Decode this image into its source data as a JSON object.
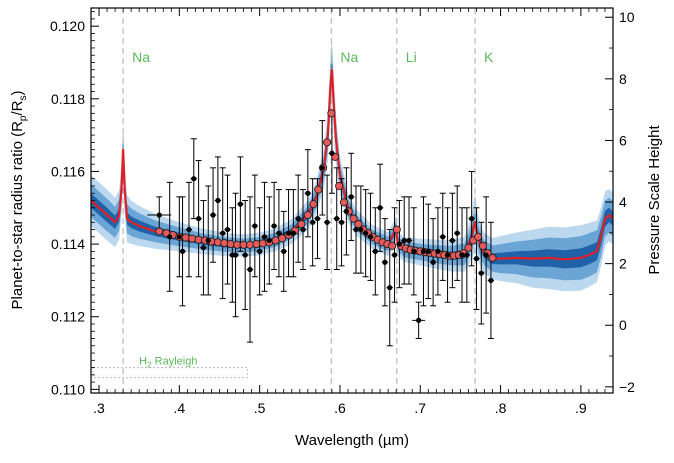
{
  "chart_data": {
    "type": "line",
    "xlabel": "Wavelength (µm)",
    "ylabel_main": "Planet-to-star radius ratio (R",
    "ylabel_sub_p": "p",
    "ylabel_slash": "/R",
    "ylabel_sub_s": "s",
    "ylabel_close": ")",
    "y2label": "Pressure Scale Height",
    "xlim": [
      0.29,
      0.94
    ],
    "ylim": [
      0.1099,
      0.1205
    ],
    "y2lim": [
      -2.2,
      10.3
    ],
    "xticks": [
      0.3,
      0.4,
      0.5,
      0.6,
      0.7,
      0.8,
      0.9
    ],
    "xtick_labels": [
      ".3",
      ".4",
      ".5",
      ".6",
      ".7",
      ".8",
      ".9"
    ],
    "yticks": [
      0.11,
      0.112,
      0.114,
      0.116,
      0.118,
      0.12
    ],
    "ytick_labels": [
      "0.110",
      "0.112",
      "0.114",
      "0.116",
      "0.118",
      "0.120"
    ],
    "y2ticks": [
      -2,
      0,
      2,
      4,
      6,
      8,
      10
    ],
    "y2tick_labels": [
      "−2",
      "0",
      "2",
      "4",
      "6",
      "8",
      "10"
    ],
    "colors": {
      "band_outer": "#bcd8ee",
      "band_mid": "#6aa5d6",
      "band_inner": "#1f62a7",
      "model": "#e01f26",
      "binned_fill": "#e85a5a",
      "data": "#000000",
      "annotation": "#5cb85c",
      "guide": "#bbbbbb"
    },
    "annotations": [
      {
        "label": "Na",
        "x": 0.33
      },
      {
        "label": "Na",
        "x": 0.5893
      },
      {
        "label": "Li",
        "x": 0.6708
      },
      {
        "label": "K",
        "x": 0.7682
      }
    ],
    "rayleigh_label_main": "H",
    "rayleigh_label_sub": "2",
    "rayleigh_label_rest": " Rayleigh",
    "rayleigh_range": [
      0.29,
      0.485
    ],
    "rayleigh_level": 0.1106,
    "model": {
      "x": [
        0.29,
        0.3,
        0.31,
        0.32,
        0.325,
        0.328,
        0.33,
        0.332,
        0.335,
        0.34,
        0.35,
        0.37,
        0.4,
        0.43,
        0.46,
        0.48,
        0.5,
        0.52,
        0.54,
        0.56,
        0.57,
        0.58,
        0.585,
        0.588,
        0.59,
        0.592,
        0.595,
        0.6,
        0.61,
        0.62,
        0.64,
        0.66,
        0.67,
        0.672,
        0.68,
        0.7,
        0.72,
        0.74,
        0.755,
        0.76,
        0.765,
        0.768,
        0.771,
        0.775,
        0.78,
        0.79,
        0.8,
        0.82,
        0.84,
        0.86,
        0.88,
        0.9,
        0.91,
        0.92,
        0.925,
        0.93,
        0.935,
        0.94
      ],
      "y": [
        0.1152,
        0.115,
        0.1148,
        0.1146,
        0.1148,
        0.1155,
        0.1166,
        0.1155,
        0.1147,
        0.1146,
        0.1145,
        0.11435,
        0.1142,
        0.11407,
        0.11398,
        0.11396,
        0.114,
        0.11412,
        0.11435,
        0.1148,
        0.11525,
        0.1161,
        0.117,
        0.1183,
        0.1188,
        0.118,
        0.1169,
        0.1159,
        0.115,
        0.1146,
        0.1142,
        0.114,
        0.1144,
        0.114,
        0.11385,
        0.11378,
        0.11372,
        0.11368,
        0.11372,
        0.11395,
        0.1143,
        0.1146,
        0.1143,
        0.11395,
        0.11375,
        0.1136,
        0.1136,
        0.11362,
        0.1136,
        0.11362,
        0.11358,
        0.11362,
        0.1137,
        0.1138,
        0.1142,
        0.1147,
        0.1148,
        0.1147
      ],
      "s1": [
        0.0002,
        0.0002,
        0.0002,
        0.00018,
        0.00018,
        0.0002,
        0.00022,
        0.0002,
        0.00017,
        0.00016,
        0.00015,
        0.00013,
        0.00011,
        9e-05,
        8e-05,
        8e-05,
        8e-05,
        8e-05,
        8e-05,
        0.0001,
        0.00012,
        0.00015,
        0.0002,
        0.00025,
        0.00028,
        0.00025,
        0.0002,
        0.00014,
        0.0001,
        9e-05,
        8e-05,
        8e-05,
        9e-05,
        8e-05,
        8e-05,
        9e-05,
        0.0001,
        0.00011,
        0.00012,
        0.00013,
        0.00014,
        0.00015,
        0.00014,
        0.00014,
        0.00014,
        0.00015,
        0.00016,
        0.00018,
        0.00022,
        0.00024,
        0.00025,
        0.00026,
        0.00026,
        0.00025,
        0.00024,
        0.00022,
        0.0002,
        0.0002
      ],
      "s2": [
        0.00045,
        0.00045,
        0.00045,
        0.00043,
        0.00043,
        0.00045,
        0.00048,
        0.00044,
        0.0004,
        0.00038,
        0.00035,
        0.0003,
        0.00026,
        0.00022,
        0.0002,
        0.00019,
        0.00019,
        0.00019,
        0.0002,
        0.00024,
        0.00028,
        0.00034,
        0.00042,
        0.0005,
        0.00055,
        0.0005,
        0.00042,
        0.00032,
        0.00025,
        0.00022,
        0.0002,
        0.0002,
        0.00022,
        0.0002,
        0.00021,
        0.00023,
        0.00025,
        0.00027,
        0.0003,
        0.00033,
        0.00037,
        0.0004,
        0.00037,
        0.00034,
        0.00034,
        0.00036,
        0.0004,
        0.00045,
        0.00052,
        0.00056,
        0.00058,
        0.0006,
        0.0006,
        0.00058,
        0.00055,
        0.0005,
        0.00048,
        0.00048
      ],
      "s3": [
        0.0007,
        0.0007,
        0.0007,
        0.00068,
        0.00068,
        0.0007,
        0.00075,
        0.0007,
        0.00065,
        0.0006,
        0.00055,
        0.00048,
        0.0004,
        0.00035,
        0.00032,
        0.00031,
        0.00031,
        0.00032,
        0.00034,
        0.0004,
        0.00046,
        0.00055,
        0.00068,
        0.0008,
        0.0009,
        0.0008,
        0.00068,
        0.00052,
        0.0004,
        0.00036,
        0.00033,
        0.00033,
        0.00036,
        0.00033,
        0.00034,
        0.00037,
        0.0004,
        0.00044,
        0.00048,
        0.00055,
        0.00065,
        0.0008,
        0.00065,
        0.00056,
        0.00055,
        0.00057,
        0.00062,
        0.0007,
        0.0008,
        0.00086,
        0.00088,
        0.0009,
        0.00088,
        0.00085,
        0.0008,
        0.00075,
        0.00072,
        0.00072
      ]
    },
    "binned_model": {
      "x": [
        0.375,
        0.384,
        0.392,
        0.4,
        0.408,
        0.416,
        0.424,
        0.432,
        0.44,
        0.448,
        0.456,
        0.464,
        0.472,
        0.48,
        0.488,
        0.496,
        0.504,
        0.512,
        0.52,
        0.528,
        0.536,
        0.544,
        0.552,
        0.56,
        0.567,
        0.573,
        0.579,
        0.584,
        0.5893,
        0.594,
        0.599,
        0.605,
        0.611,
        0.617,
        0.623,
        0.629,
        0.635,
        0.641,
        0.647,
        0.653,
        0.659,
        0.665,
        0.6708,
        0.676,
        0.682,
        0.688,
        0.694,
        0.7,
        0.706,
        0.712,
        0.718,
        0.724,
        0.73,
        0.736,
        0.742,
        0.748,
        0.754,
        0.76,
        0.766,
        0.772,
        0.778,
        0.784,
        0.79
      ],
      "y": [
        0.11435,
        0.1143,
        0.11425,
        0.1142,
        0.11418,
        0.11415,
        0.11412,
        0.1141,
        0.11407,
        0.11405,
        0.11403,
        0.114,
        0.11398,
        0.11398,
        0.11398,
        0.114,
        0.11402,
        0.11405,
        0.1141,
        0.11416,
        0.11425,
        0.11437,
        0.11455,
        0.1148,
        0.1151,
        0.1155,
        0.1161,
        0.1168,
        0.1176,
        0.1164,
        0.1156,
        0.11515,
        0.1149,
        0.1147,
        0.11455,
        0.1144,
        0.1143,
        0.1142,
        0.11412,
        0.11405,
        0.114,
        0.11395,
        0.1144,
        0.11395,
        0.11388,
        0.11384,
        0.11382,
        0.1138,
        0.11378,
        0.11376,
        0.11374,
        0.11372,
        0.1137,
        0.11368,
        0.11368,
        0.1137,
        0.11375,
        0.1139,
        0.1141,
        0.1142,
        0.11395,
        0.11375,
        0.11362
      ]
    },
    "observations": {
      "x": [
        0.375,
        0.388,
        0.4,
        0.404,
        0.412,
        0.418,
        0.424,
        0.43,
        0.436,
        0.442,
        0.448,
        0.454,
        0.46,
        0.466,
        0.47,
        0.476,
        0.482,
        0.488,
        0.494,
        0.5,
        0.506,
        0.512,
        0.518,
        0.524,
        0.53,
        0.536,
        0.542,
        0.548,
        0.554,
        0.56,
        0.566,
        0.572,
        0.578,
        0.584,
        0.59,
        0.596,
        0.602,
        0.608,
        0.614,
        0.62,
        0.626,
        0.632,
        0.638,
        0.644,
        0.65,
        0.656,
        0.662,
        0.668,
        0.674,
        0.68,
        0.686,
        0.692,
        0.698,
        0.704,
        0.71,
        0.716,
        0.722,
        0.728,
        0.734,
        0.74,
        0.746,
        0.752,
        0.758,
        0.764,
        0.77,
        0.776,
        0.782,
        0.788
      ],
      "y": [
        0.1148,
        0.1142,
        0.1142,
        0.1138,
        0.1144,
        0.1158,
        0.1147,
        0.1139,
        0.1141,
        0.1148,
        0.1152,
        0.1143,
        0.1144,
        0.1137,
        0.1137,
        0.1151,
        0.1137,
        0.1133,
        0.1145,
        0.1138,
        0.1142,
        0.1141,
        0.1145,
        0.1143,
        0.1138,
        0.1143,
        0.1143,
        0.1147,
        0.1144,
        0.1154,
        0.1146,
        0.1147,
        0.1161,
        0.1146,
        0.1165,
        0.1147,
        0.1146,
        0.1149,
        0.1153,
        0.1144,
        0.1144,
        0.1143,
        0.1142,
        0.1138,
        0.115,
        0.1135,
        0.1128,
        0.1137,
        0.114,
        0.1141,
        0.1141,
        0.1138,
        0.1119,
        0.1138,
        0.1138,
        0.1135,
        0.1138,
        0.1142,
        0.1137,
        0.1141,
        0.1143,
        0.1137,
        0.1137,
        0.1147,
        0.1136,
        0.1132,
        0.1137,
        0.113
      ],
      "yerr": [
        0.0005,
        0.0015,
        0.0011,
        0.0015,
        0.0013,
        0.0011,
        0.0016,
        0.0013,
        0.0015,
        0.0013,
        0.0012,
        0.0018,
        0.0015,
        0.0013,
        0.0017,
        0.0013,
        0.0015,
        0.002,
        0.0014,
        0.0012,
        0.0015,
        0.0012,
        0.0012,
        0.0012,
        0.0011,
        0.0012,
        0.0012,
        0.0012,
        0.0011,
        0.0012,
        0.0012,
        0.0011,
        0.0013,
        0.0013,
        0.0011,
        0.0014,
        0.0012,
        0.0012,
        0.0012,
        0.0012,
        0.0012,
        0.0012,
        0.0012,
        0.0012,
        0.0012,
        0.0012,
        0.0016,
        0.0013,
        0.0012,
        0.0012,
        0.0012,
        0.0012,
        0.0005,
        0.0015,
        0.0013,
        0.0012,
        0.0012,
        0.0012,
        0.0013,
        0.0013,
        0.0013,
        0.0013,
        0.0013,
        0.0013,
        0.0014,
        0.0014,
        0.0016,
        0.0016
      ],
      "xerr": [
        0.015,
        0.004,
        0.004,
        0.004,
        0.004,
        0.004,
        0.004,
        0.004,
        0.004,
        0.004,
        0.004,
        0.004,
        0.004,
        0.004,
        0.004,
        0.004,
        0.004,
        0.004,
        0.004,
        0.004,
        0.004,
        0.004,
        0.004,
        0.004,
        0.004,
        0.004,
        0.004,
        0.004,
        0.004,
        0.004,
        0.004,
        0.004,
        0.004,
        0.004,
        0.004,
        0.004,
        0.004,
        0.004,
        0.004,
        0.004,
        0.004,
        0.004,
        0.004,
        0.004,
        0.004,
        0.004,
        0.004,
        0.004,
        0.004,
        0.004,
        0.004,
        0.004,
        0.008,
        0.004,
        0.004,
        0.004,
        0.004,
        0.004,
        0.004,
        0.004,
        0.004,
        0.004,
        0.004,
        0.004,
        0.004,
        0.004,
        0.004,
        0.004
      ]
    }
  }
}
